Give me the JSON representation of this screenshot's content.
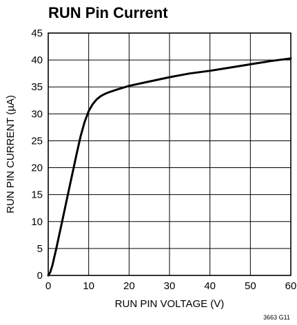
{
  "chart_data": {
    "type": "line",
    "title": "RUN Pin Current",
    "xlabel": "RUN PIN VOLTAGE (V)",
    "ylabel": "RUN PIN CURRENT (µA)",
    "xlim": [
      0,
      60
    ],
    "ylim": [
      0,
      45
    ],
    "xticks": [
      "0",
      "10",
      "20",
      "30",
      "40",
      "50",
      "60"
    ],
    "yticks": [
      "0",
      "5",
      "10",
      "15",
      "20",
      "25",
      "30",
      "35",
      "40",
      "45"
    ],
    "grid": true,
    "series": [
      {
        "x": [
          0,
          0.5,
          1,
          2,
          3,
          4,
          5,
          6,
          7,
          8,
          9,
          10,
          11,
          12,
          13,
          14,
          15,
          17,
          20,
          25,
          30,
          35,
          40,
          45,
          50,
          55,
          60
        ],
        "y": [
          0,
          0.6,
          1.8,
          5.0,
          8.5,
          12.0,
          15.5,
          19.0,
          22.5,
          25.8,
          28.5,
          30.5,
          31.8,
          32.7,
          33.3,
          33.7,
          34.0,
          34.5,
          35.2,
          36.0,
          36.8,
          37.5,
          38.0,
          38.6,
          39.2,
          39.8,
          40.3
        ]
      }
    ],
    "figure_code": "3663 G11"
  }
}
